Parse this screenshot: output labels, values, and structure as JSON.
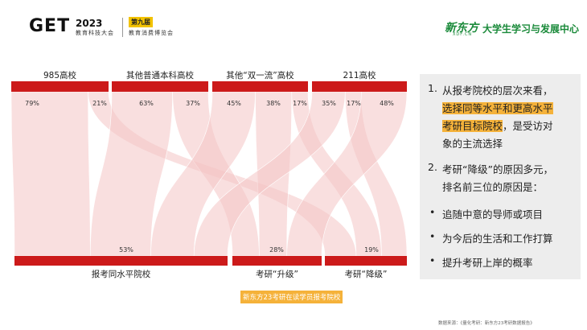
{
  "header": {
    "get_logo": "GET",
    "get_year": "2023",
    "get_sub": "教育科技大会",
    "badge": "第九届",
    "expo": "教育消费博览会",
    "xdf_logo": "新东方",
    "xdf_en": "XDF.CN",
    "center_name": "大学生学习与发展中心"
  },
  "colors": {
    "bar": "#cc1a1a",
    "flow": "#f4c4c4",
    "highlight": "#f5b23a",
    "callout_bg": "#ededed"
  },
  "chart_data": {
    "type": "sankey",
    "source_nodes": [
      "985高校",
      "其他普通本科高校",
      "其他“双一流”高校",
      "211高校"
    ],
    "target_nodes": [
      "报考同水平院校",
      "考研“升级”",
      "考研“降级”"
    ],
    "source_shares": [
      [
        "79%",
        "21%"
      ],
      [
        "63%",
        "37%"
      ],
      [
        "45%",
        "38%",
        "17%"
      ],
      [
        "35%",
        "17%",
        "48%"
      ]
    ],
    "target_shares": [
      "53%",
      "28%",
      "19%"
    ],
    "flows": [
      {
        "source": 0,
        "target": 0,
        "value": 79
      },
      {
        "source": 0,
        "target": 2,
        "value": 21
      },
      {
        "source": 1,
        "target": 0,
        "value": 63
      },
      {
        "source": 1,
        "target": 1,
        "value": 37
      },
      {
        "source": 2,
        "target": 0,
        "value": 45
      },
      {
        "source": 2,
        "target": 1,
        "value": 38
      },
      {
        "source": 2,
        "target": 2,
        "value": 17
      },
      {
        "source": 3,
        "target": 0,
        "value": 35
      },
      {
        "source": 3,
        "target": 2,
        "value": 17
      },
      {
        "source": 3,
        "target": 1,
        "value": 48
      }
    ]
  },
  "callout": {
    "item1_num": "1.",
    "item1_l1": "从报考院校的层次来看，",
    "item1_hl1": "选择同等水平和更高水平",
    "item1_hl2": "考研目标院校",
    "item1_l3tail": "，是受访对",
    "item1_l4": "象的主流选择",
    "item2_num": "2.",
    "item2_l1": "考研“降级”的原因多元，",
    "item2_l2": "排名前三位的原因是：",
    "bullets": [
      "追随中意的导师或项目",
      "为今后的生活和工作打算",
      "提升考研上岸的概率"
    ]
  },
  "source_tag": "新东方23考研在读学员报考院校",
  "footer": "数据来源：《量化考研：新东方23考研数据报告》"
}
